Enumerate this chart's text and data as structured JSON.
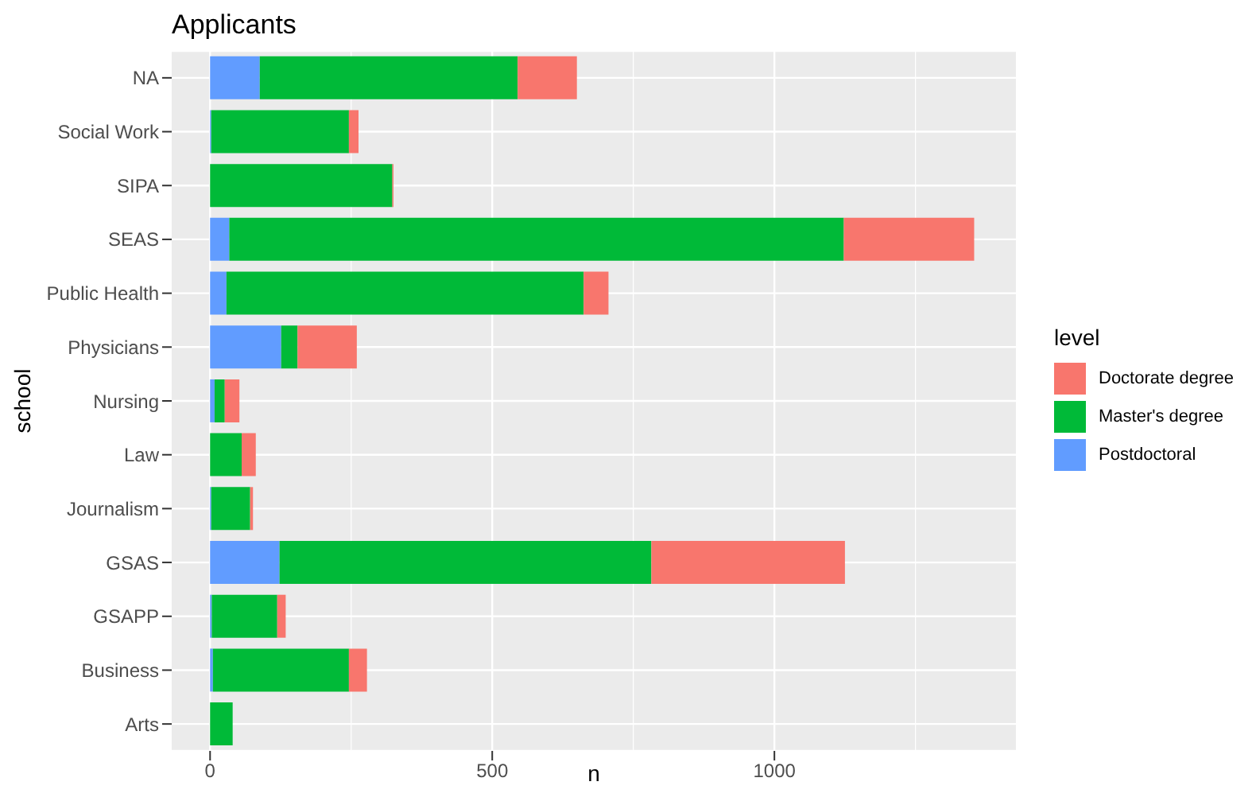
{
  "chart_data": {
    "type": "bar",
    "orientation": "horizontal",
    "stacked": true,
    "title": "Applicants",
    "xlabel": "n",
    "ylabel": "school",
    "legend_title": "level",
    "categories": [
      "NA",
      "Social Work",
      "SIPA",
      "SEAS",
      "Public Health",
      "Physicians",
      "Nursing",
      "Law",
      "Journalism",
      "GSAS",
      "GSAPP",
      "Business",
      "Arts"
    ],
    "series": [
      {
        "name": "Postdoctoral",
        "color": "#619cff",
        "values": [
          88,
          2,
          null,
          34,
          29,
          126,
          8,
          null,
          2,
          123,
          3,
          5,
          null
        ]
      },
      {
        "name": "Master's degree",
        "color": "#00ba38",
        "values": [
          457,
          244,
          323,
          1089,
          633,
          29,
          18,
          56,
          69,
          659,
          116,
          241,
          40
        ]
      },
      {
        "name": "Doctorate degree",
        "color": "#f8766d",
        "values": [
          105,
          17,
          2,
          231,
          44,
          105,
          26,
          25,
          5,
          343,
          15,
          32,
          null
        ]
      }
    ],
    "xlim": [
      -68,
      1428
    ],
    "xticks": [
      0,
      500,
      1000
    ],
    "grid": true,
    "legend": "right"
  }
}
